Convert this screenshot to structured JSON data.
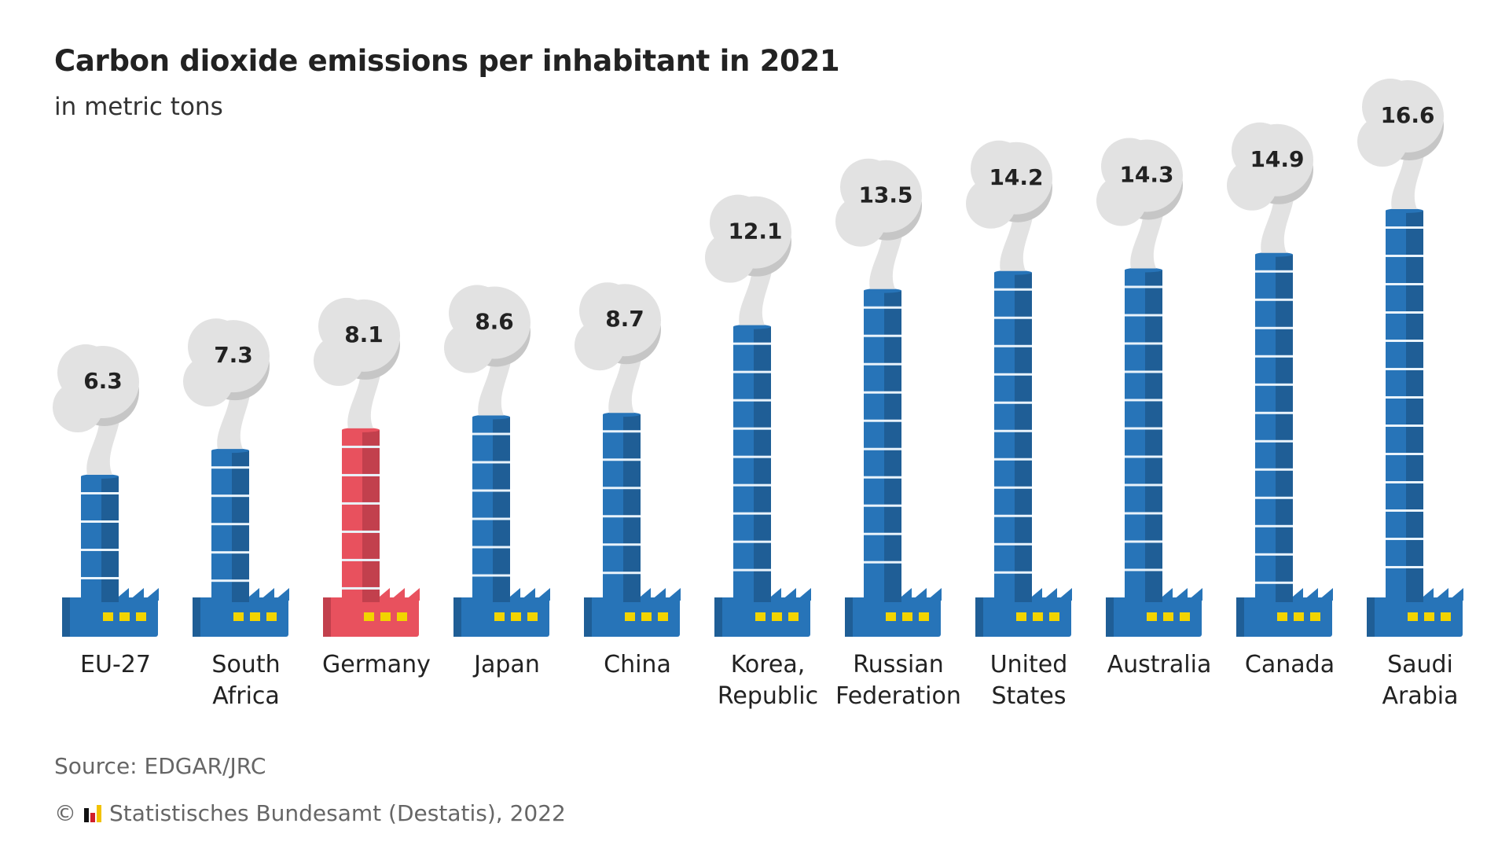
{
  "title": "Carbon dioxide emissions per inhabitant in 2021",
  "subtitle": "in metric tons",
  "source": "Source: EDGAR/JRC",
  "copyright": {
    "symbol": "©",
    "text": "Statistisches Bundesamt (Destatis), 2022"
  },
  "colors": {
    "chimney": "#2774b8",
    "chimney_dark": "#1f5e96",
    "highlight": "#e8515e",
    "highlight_dark": "#c2404d",
    "smoke": "#e2e2e2",
    "smoke_shadow": "#c6c6c6",
    "windows": "#f2d400"
  },
  "chart_data": {
    "type": "bar",
    "title": "Carbon dioxide emissions per inhabitant in 2021",
    "subtitle": "in metric tons",
    "categories": [
      [
        "EU-27"
      ],
      [
        "South",
        "Africa"
      ],
      [
        "Germany"
      ],
      [
        "Japan"
      ],
      [
        "China"
      ],
      [
        "Korea,",
        "Republic"
      ],
      [
        "Russian",
        "Federation"
      ],
      [
        "United",
        "States"
      ],
      [
        "Australia"
      ],
      [
        "Canada"
      ],
      [
        "Saudi",
        "Arabia"
      ]
    ],
    "values": [
      6.3,
      7.3,
      8.1,
      8.6,
      8.7,
      12.1,
      13.5,
      14.2,
      14.3,
      14.9,
      16.6
    ],
    "value_labels": [
      "6.3",
      "7.3",
      "8.1",
      "8.6",
      "8.7",
      "12.1",
      "13.5",
      "14.2",
      "14.3",
      "14.9",
      "16.6"
    ],
    "highlighted": "Germany",
    "ylim": [
      0,
      16.6
    ],
    "grid": false,
    "legend": "none"
  }
}
